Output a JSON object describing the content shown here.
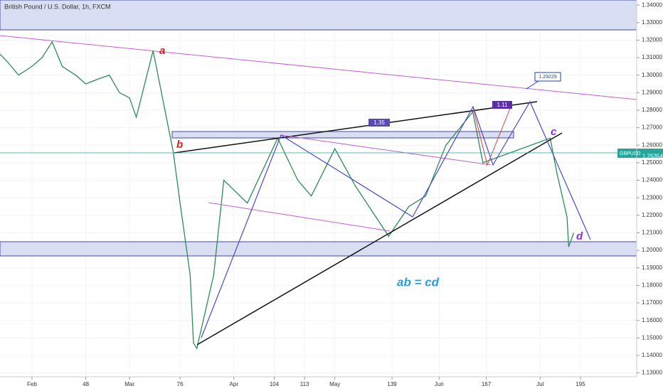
{
  "chart_data": {
    "type": "line",
    "title": "British Pound / U.S. Dollar, 1h, FXCM",
    "x": [
      22.5,
      25,
      28,
      32,
      35,
      38,
      41,
      45,
      48,
      52,
      55,
      58,
      61,
      63,
      68,
      74,
      76,
      79,
      80,
      81,
      86,
      89,
      96,
      105,
      111,
      115,
      122,
      128,
      138,
      144,
      149,
      155,
      163,
      166,
      186,
      188,
      191,
      191.5,
      193
    ],
    "series": [
      {
        "name": "GBPUSD",
        "color": "#2e8b57",
        "values": [
          1.312,
          1.307,
          1.3,
          1.305,
          1.31,
          1.319,
          1.305,
          1.3,
          1.295,
          1.298,
          1.3,
          1.29,
          1.287,
          1.276,
          1.314,
          1.256,
          1.227,
          1.186,
          1.147,
          1.144,
          1.186,
          1.24,
          1.227,
          1.264,
          1.24,
          1.231,
          1.258,
          1.237,
          1.208,
          1.225,
          1.231,
          1.26,
          1.279,
          1.25,
          1.264,
          1.244,
          1.219,
          1.202,
          1.21
        ]
      }
    ],
    "xlim": [
      22.5,
      211.7
    ],
    "xticks": [
      {
        "value": 32,
        "label": "Feb"
      },
      48,
      {
        "value": 61,
        "label": "Mar"
      },
      76,
      {
        "value": 92,
        "label": "Apr"
      },
      104,
      113,
      {
        "value": 122,
        "label": "May"
      },
      139,
      {
        "value": 153,
        "label": "Jun"
      },
      167,
      {
        "value": 183,
        "label": "Jul"
      },
      195
    ],
    "ylim": [
      1.1278,
      1.3429
    ],
    "yticks": [
      {
        "value": 1.34,
        "label": "1.34000"
      },
      {
        "value": 1.33,
        "label": "1.33000"
      },
      {
        "value": 1.32,
        "label": "1.32000"
      },
      {
        "value": 1.31,
        "label": "1.31000"
      },
      {
        "value": 1.3,
        "label": "1.30000"
      },
      {
        "value": 1.29,
        "label": "1.29000"
      },
      {
        "value": 1.28,
        "label": "1.28000"
      },
      {
        "value": 1.27,
        "label": "1.27000"
      },
      {
        "value": 1.26,
        "label": "1.26000"
      },
      {
        "value": 1.25,
        "label": "1.25000"
      },
      {
        "value": 1.24,
        "label": "1.24000"
      },
      {
        "value": 1.23,
        "label": "1.23000"
      },
      {
        "value": 1.22,
        "label": "1.22000"
      },
      {
        "value": 1.21,
        "label": "1.21000"
      },
      {
        "value": 1.2,
        "label": "1.20000"
      },
      {
        "value": 1.19,
        "label": "1.19000"
      },
      {
        "value": 1.18,
        "label": "1.18000"
      },
      {
        "value": 1.17,
        "label": "1.17000"
      },
      {
        "value": 1.16,
        "label": "1.16000"
      },
      {
        "value": 1.15,
        "label": "1.15000"
      },
      {
        "value": 1.14,
        "label": "1.14000"
      },
      {
        "value": 1.13,
        "label": "1.13000"
      }
    ],
    "grid": true,
    "last_price": {
      "value": 1.25354,
      "label": "1.25354"
    },
    "symbol": "GBPUSD",
    "annotations": {
      "a": "a",
      "b": "b",
      "c": "c",
      "d": "d",
      "pattern": "ab = cd",
      "ratio1": "1.35",
      "ratio2": "1.11",
      "target": "1.29229"
    }
  }
}
